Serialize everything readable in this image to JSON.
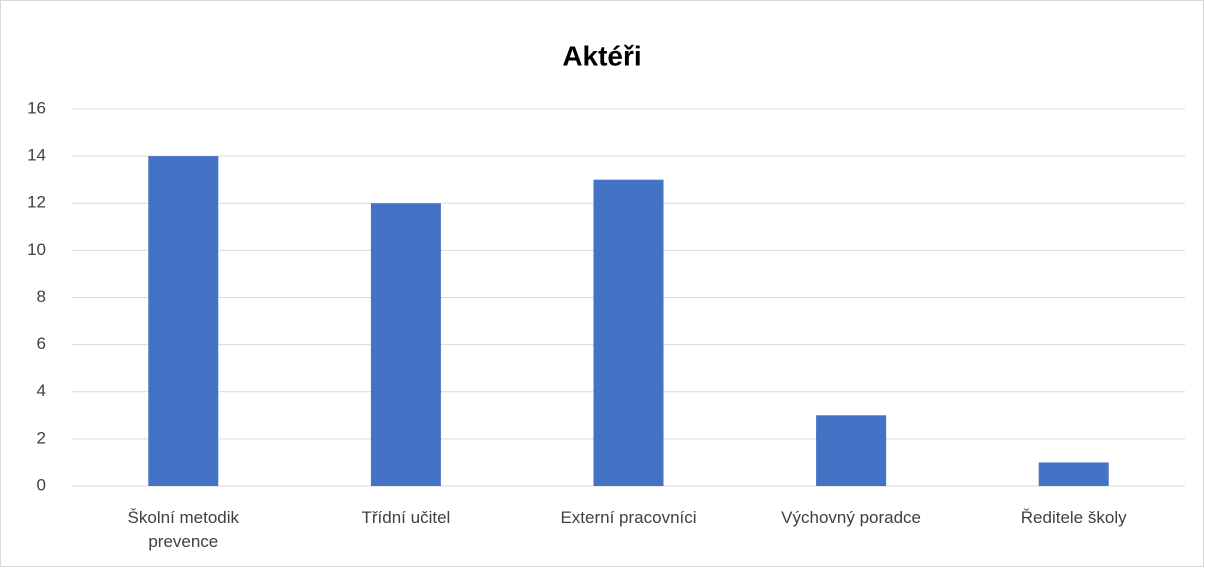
{
  "chart_data": {
    "type": "bar",
    "title": "Aktéři",
    "categories": [
      "Školní metodik prevence",
      "Třídní učitel",
      "Externí pracovníci",
      "Výchovný poradce",
      "Ředitele školy"
    ],
    "values": [
      14,
      12,
      13,
      3,
      1
    ],
    "color": "#4472c4",
    "ylim": [
      0,
      16
    ],
    "yticks": [
      0,
      2,
      4,
      6,
      8,
      10,
      12,
      14,
      16
    ],
    "grid": true
  }
}
